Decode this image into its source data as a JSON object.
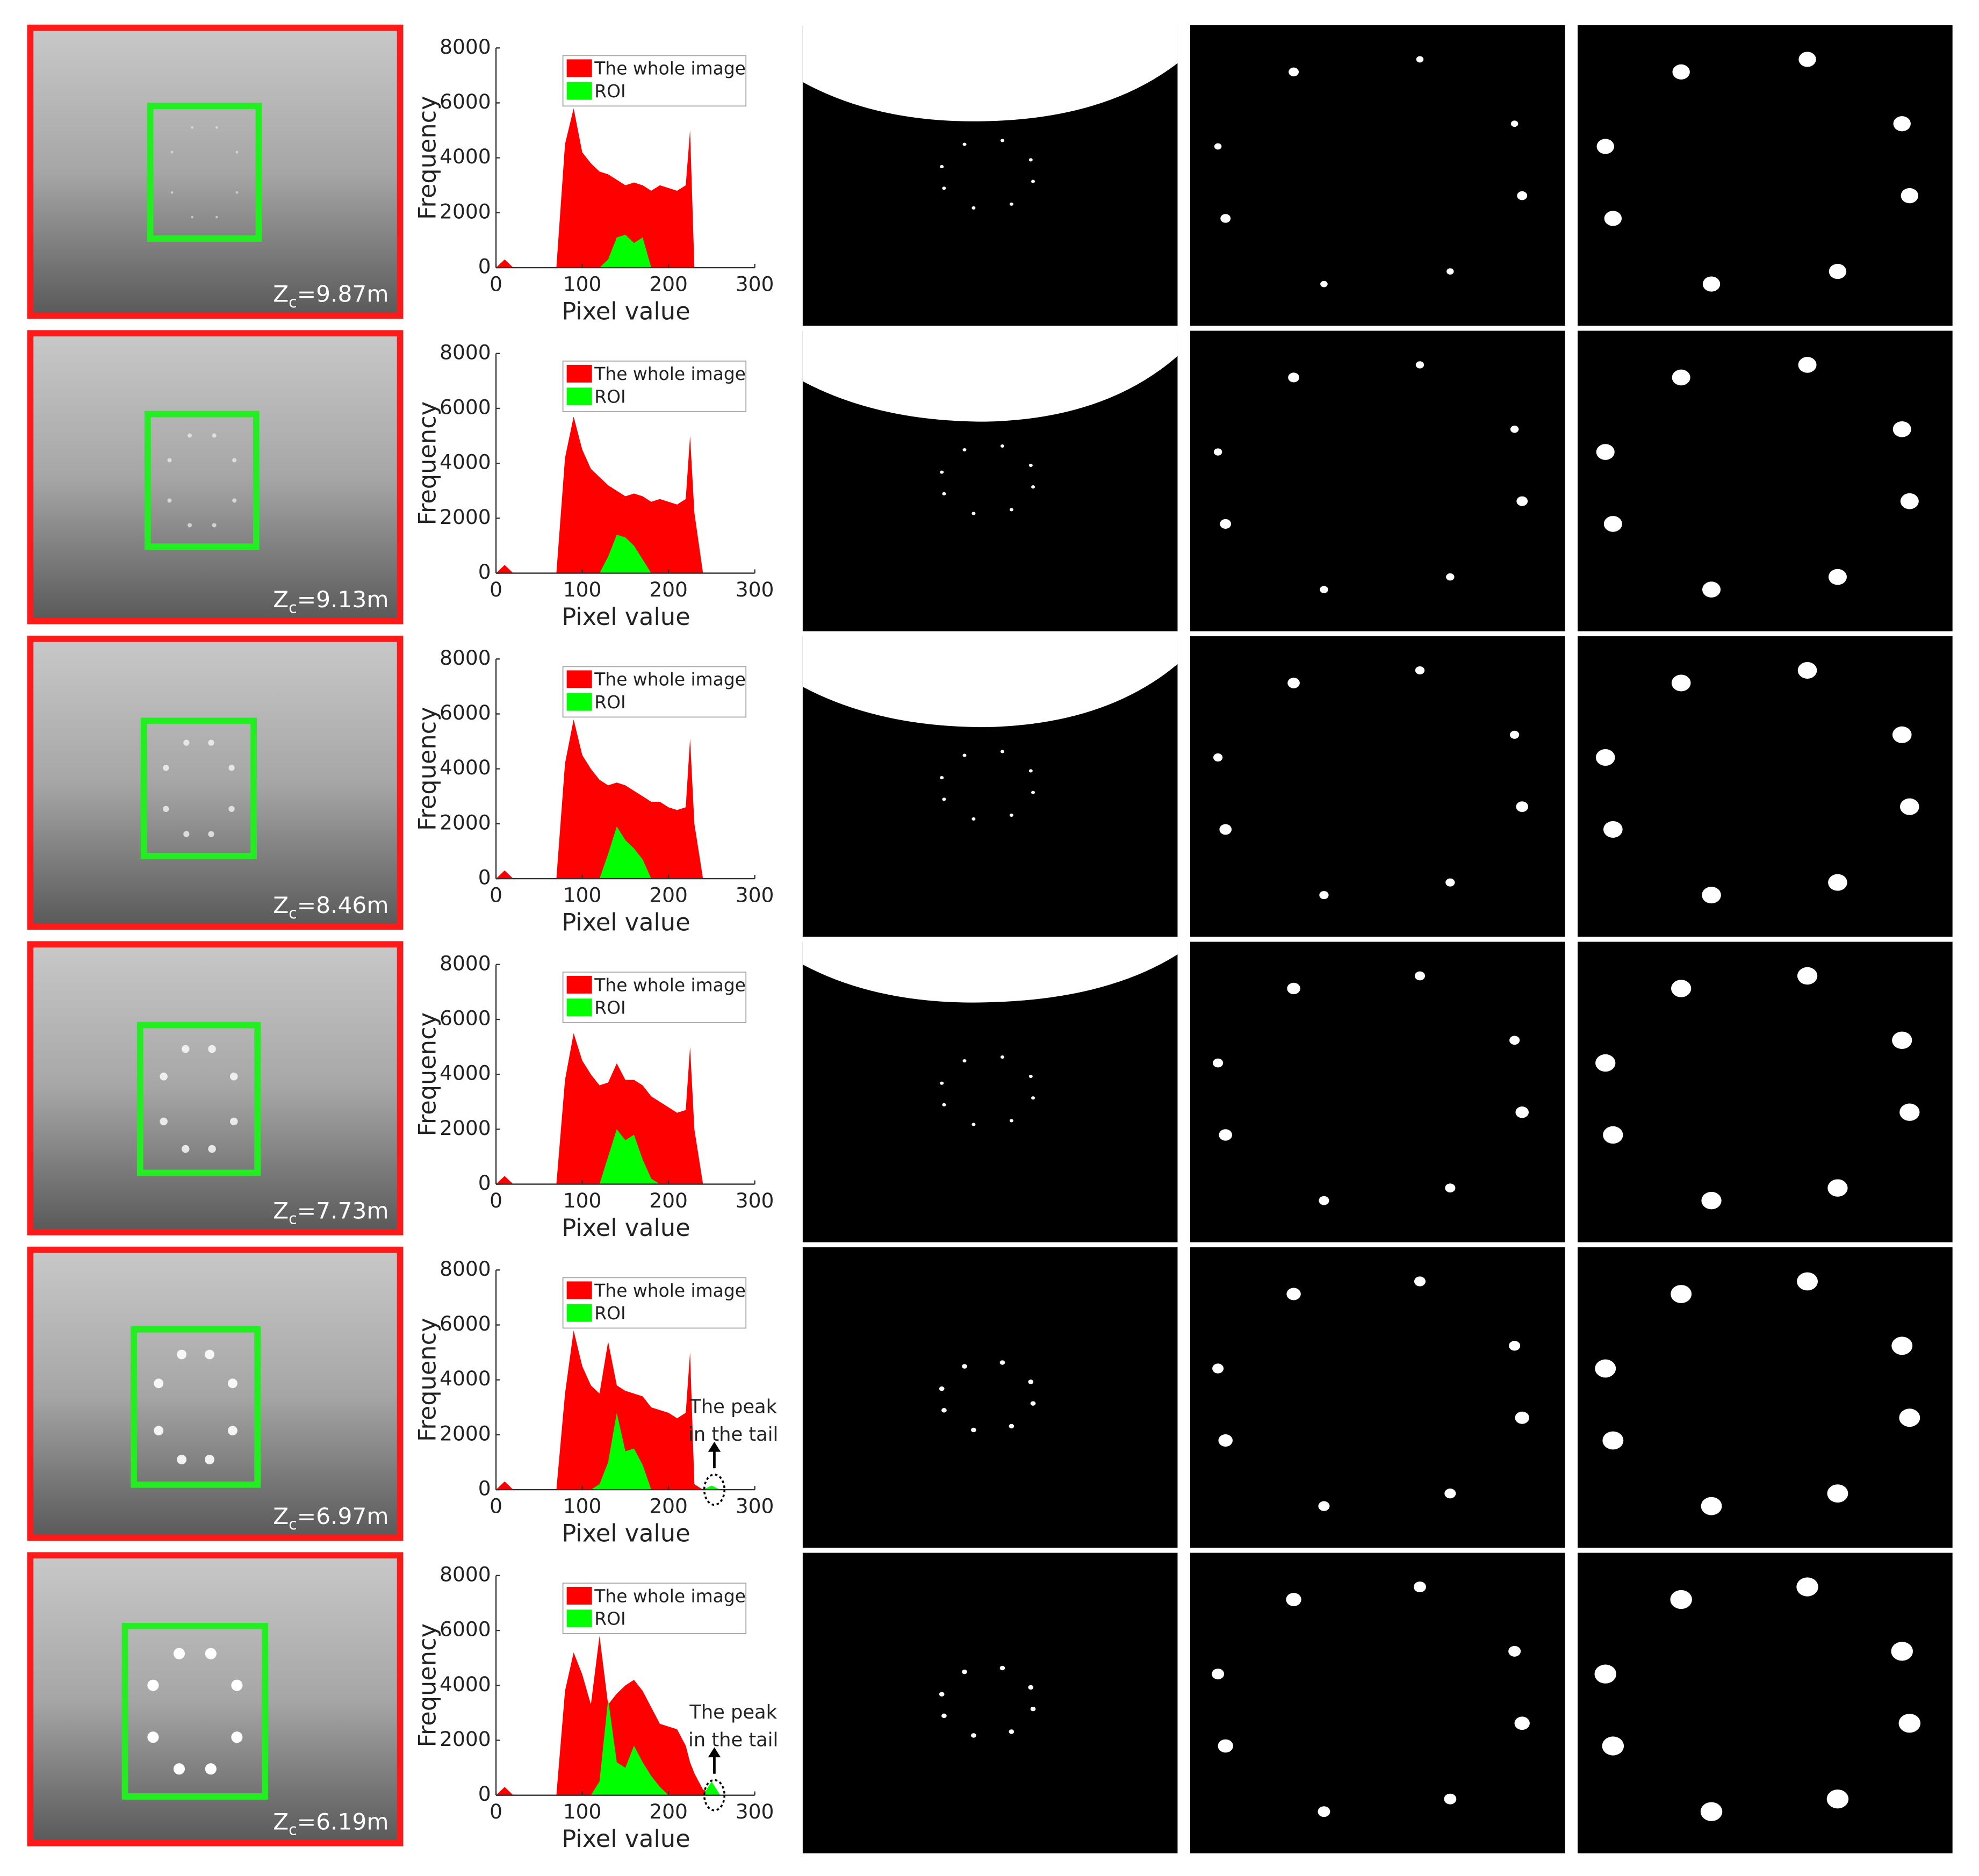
{
  "chart_data": [
    {
      "type": "area",
      "xlabel": "Pixel value",
      "ylabel": "Frequency",
      "xlim": [
        0,
        300
      ],
      "xticks": [
        0,
        100,
        200,
        300
      ],
      "ylim": [
        0,
        8000
      ],
      "yticks": [
        0,
        2000,
        4000,
        6000,
        8000
      ],
      "x": [
        0,
        10,
        20,
        60,
        70,
        80,
        90,
        100,
        110,
        120,
        130,
        140,
        150,
        160,
        170,
        180,
        190,
        200,
        210,
        220,
        225,
        230,
        240,
        250,
        260,
        270
      ],
      "series": [
        {
          "name": "The whole image",
          "color": "#ff0000",
          "values": [
            0,
            300,
            0,
            0,
            0,
            4500,
            5800,
            4200,
            3800,
            3500,
            3400,
            3200,
            3000,
            3100,
            3000,
            2800,
            3000,
            2900,
            2800,
            3000,
            5000,
            0,
            0,
            0,
            0,
            0
          ]
        },
        {
          "name": "ROI",
          "color": "#00ff00",
          "values": [
            0,
            0,
            0,
            0,
            0,
            0,
            0,
            0,
            0,
            0,
            300,
            1100,
            1200,
            900,
            1100,
            0,
            0,
            0,
            0,
            0,
            0,
            0,
            0,
            0,
            0,
            0
          ]
        }
      ]
    },
    {
      "type": "area",
      "xlabel": "Pixel value",
      "ylabel": "Frequency",
      "xlim": [
        0,
        300
      ],
      "xticks": [
        0,
        100,
        200,
        300
      ],
      "ylim": [
        0,
        8000
      ],
      "yticks": [
        0,
        2000,
        4000,
        6000,
        8000
      ],
      "x": [
        0,
        10,
        20,
        60,
        70,
        80,
        90,
        100,
        110,
        120,
        130,
        140,
        150,
        160,
        170,
        180,
        190,
        200,
        210,
        220,
        225,
        230,
        240,
        250,
        260,
        270
      ],
      "series": [
        {
          "name": "The whole image",
          "color": "#ff0000",
          "values": [
            0,
            300,
            0,
            0,
            0,
            4200,
            5700,
            4500,
            3800,
            3500,
            3200,
            3000,
            2800,
            2900,
            2800,
            2600,
            2700,
            2600,
            2500,
            2700,
            5000,
            2200,
            0,
            0,
            0,
            0
          ]
        },
        {
          "name": "ROI",
          "color": "#00ff00",
          "values": [
            0,
            0,
            0,
            0,
            0,
            0,
            0,
            0,
            0,
            0,
            600,
            1400,
            1300,
            1000,
            500,
            0,
            0,
            0,
            0,
            0,
            0,
            0,
            0,
            0,
            0,
            0
          ]
        }
      ]
    },
    {
      "type": "area",
      "xlabel": "Pixel value",
      "ylabel": "Frequency",
      "xlim": [
        0,
        300
      ],
      "xticks": [
        0,
        100,
        200,
        300
      ],
      "ylim": [
        0,
        8000
      ],
      "yticks": [
        0,
        2000,
        4000,
        6000,
        8000
      ],
      "x": [
        0,
        10,
        20,
        60,
        70,
        80,
        90,
        100,
        110,
        120,
        130,
        140,
        150,
        160,
        170,
        180,
        190,
        200,
        210,
        220,
        225,
        230,
        240,
        250,
        260,
        270
      ],
      "series": [
        {
          "name": "The whole image",
          "color": "#ff0000",
          "values": [
            0,
            300,
            0,
            0,
            0,
            4200,
            5800,
            4500,
            4000,
            3600,
            3400,
            3500,
            3400,
            3200,
            3000,
            2800,
            2800,
            2600,
            2500,
            2600,
            5100,
            2000,
            0,
            0,
            0,
            0
          ]
        },
        {
          "name": "ROI",
          "color": "#00ff00",
          "values": [
            0,
            0,
            0,
            0,
            0,
            0,
            0,
            0,
            0,
            0,
            900,
            1900,
            1400,
            1100,
            700,
            0,
            0,
            0,
            0,
            0,
            0,
            0,
            0,
            0,
            0,
            0
          ]
        }
      ]
    },
    {
      "type": "area",
      "xlabel": "Pixel value",
      "ylabel": "Frequency",
      "xlim": [
        0,
        300
      ],
      "xticks": [
        0,
        100,
        200,
        300
      ],
      "ylim": [
        0,
        8000
      ],
      "yticks": [
        0,
        2000,
        4000,
        6000,
        8000
      ],
      "x": [
        0,
        10,
        20,
        60,
        70,
        80,
        90,
        100,
        110,
        120,
        130,
        140,
        150,
        160,
        170,
        180,
        190,
        200,
        210,
        220,
        225,
        230,
        240,
        250,
        260,
        270
      ],
      "series": [
        {
          "name": "The whole image",
          "color": "#ff0000",
          "values": [
            0,
            300,
            0,
            0,
            0,
            3800,
            5500,
            4500,
            4000,
            3600,
            3700,
            4400,
            3800,
            3800,
            3600,
            3200,
            3000,
            2800,
            2600,
            2700,
            5000,
            2000,
            0,
            0,
            0,
            0
          ]
        },
        {
          "name": "ROI",
          "color": "#00ff00",
          "values": [
            0,
            0,
            0,
            0,
            0,
            0,
            0,
            0,
            0,
            0,
            1000,
            2000,
            1600,
            1800,
            900,
            200,
            0,
            0,
            0,
            0,
            0,
            0,
            0,
            0,
            0,
            0
          ]
        }
      ]
    },
    {
      "type": "area",
      "xlabel": "Pixel value",
      "ylabel": "Frequency",
      "xlim": [
        0,
        300
      ],
      "xticks": [
        0,
        100,
        200,
        300
      ],
      "ylim": [
        0,
        8000
      ],
      "yticks": [
        0,
        2000,
        4000,
        6000,
        8000
      ],
      "annotations": [
        "The peak",
        "in the tail"
      ],
      "x": [
        0,
        10,
        20,
        60,
        70,
        80,
        90,
        100,
        110,
        120,
        130,
        140,
        150,
        160,
        170,
        180,
        190,
        200,
        210,
        220,
        225,
        230,
        240,
        250,
        260,
        270
      ],
      "series": [
        {
          "name": "The whole image",
          "color": "#ff0000",
          "values": [
            0,
            300,
            0,
            0,
            0,
            3500,
            5800,
            4500,
            3800,
            3500,
            5400,
            3800,
            3600,
            3500,
            3400,
            3000,
            2900,
            2800,
            2600,
            2800,
            5000,
            200,
            0,
            0,
            0,
            0
          ]
        },
        {
          "name": "ROI",
          "color": "#00ff00",
          "values": [
            0,
            0,
            0,
            0,
            0,
            0,
            0,
            0,
            0,
            200,
            1000,
            2800,
            1400,
            1500,
            900,
            0,
            0,
            0,
            0,
            0,
            0,
            0,
            0,
            150,
            0,
            0
          ]
        }
      ]
    },
    {
      "type": "area",
      "xlabel": "Pixel value",
      "ylabel": "Frequency",
      "xlim": [
        0,
        300
      ],
      "xticks": [
        0,
        100,
        200,
        300
      ],
      "ylim": [
        0,
        8000
      ],
      "yticks": [
        0,
        2000,
        4000,
        6000,
        8000
      ],
      "annotations": [
        "The peak",
        "in the tail"
      ],
      "x": [
        0,
        10,
        20,
        60,
        70,
        80,
        90,
        100,
        110,
        120,
        130,
        140,
        150,
        160,
        170,
        180,
        190,
        200,
        210,
        220,
        225,
        230,
        240,
        250,
        260,
        270
      ],
      "series": [
        {
          "name": "The whole image",
          "color": "#ff0000",
          "values": [
            0,
            300,
            0,
            0,
            0,
            3800,
            5200,
            4400,
            3300,
            5800,
            3300,
            3700,
            4000,
            4200,
            3800,
            3200,
            2600,
            2500,
            2400,
            1800,
            1200,
            800,
            200,
            100,
            0,
            0
          ]
        },
        {
          "name": "ROI",
          "color": "#00ff00",
          "values": [
            0,
            0,
            0,
            0,
            0,
            0,
            0,
            0,
            0,
            500,
            3500,
            1200,
            1000,
            1800,
            1200,
            700,
            300,
            0,
            0,
            0,
            0,
            0,
            0,
            500,
            0,
            0
          ]
        }
      ]
    }
  ],
  "photos": [
    {
      "symbol": "Z",
      "subscript": "c",
      "text": "=9.87m"
    },
    {
      "symbol": "Z",
      "subscript": "c",
      "text": "=9.13m"
    },
    {
      "symbol": "Z",
      "subscript": "c",
      "text": "=8.46m"
    },
    {
      "symbol": "Z",
      "subscript": "c",
      "text": "=7.73m"
    },
    {
      "symbol": "Z",
      "subscript": "c",
      "text": "=6.97m"
    },
    {
      "symbol": "Z",
      "subscript": "c",
      "text": "=6.19m"
    }
  ]
}
